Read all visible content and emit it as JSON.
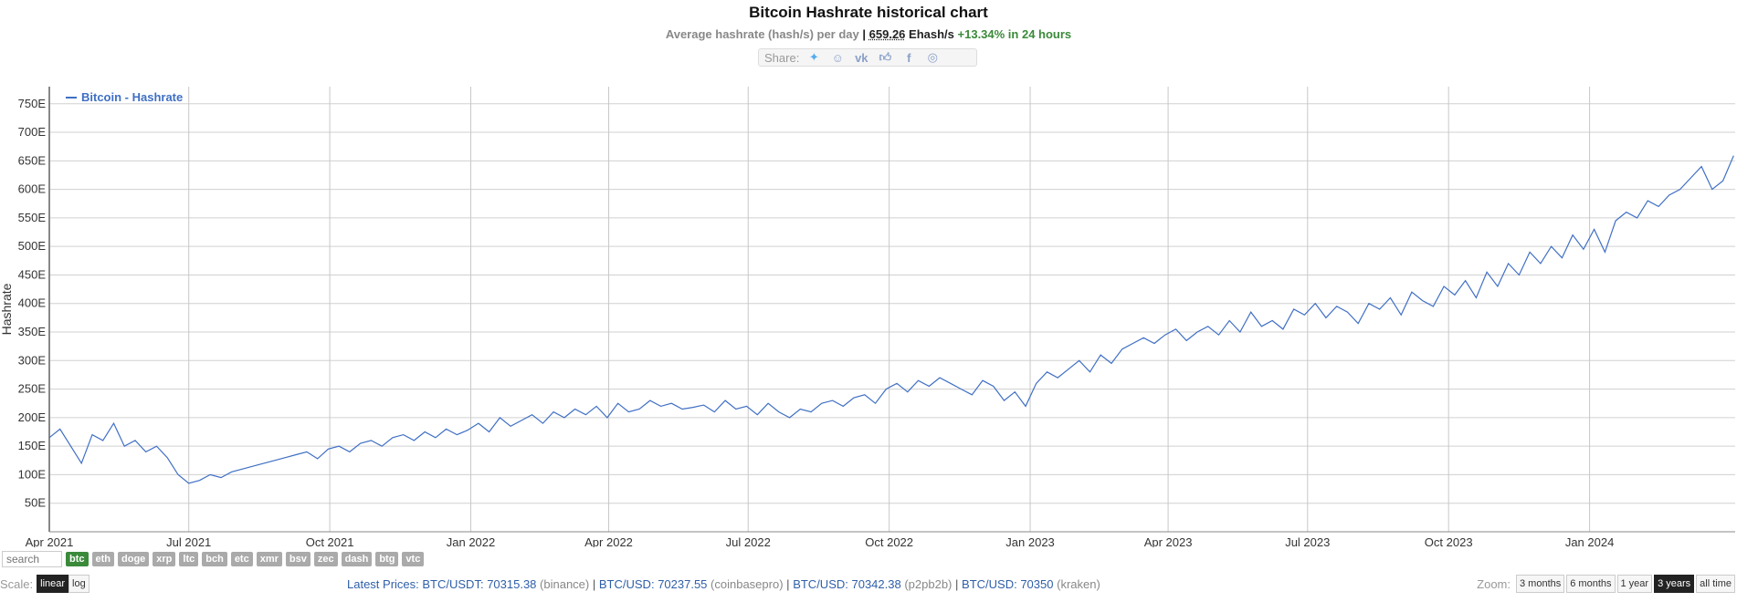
{
  "header": {
    "title": "Bitcoin Hashrate historical chart",
    "subtitle_prefix": "Average hashrate (hash/s) per day",
    "subtitle_sep": "|",
    "subtitle_value": "659.26",
    "subtitle_unit": "Ehash/s",
    "subtitle_change": "+13.34% in 24 hours",
    "share_label": "Share:",
    "share_icons": [
      "twitter-icon",
      "reddit-icon",
      "vk-icon",
      "like-icon",
      "facebook-icon",
      "weibo-icon"
    ]
  },
  "chart_data": {
    "type": "line",
    "title": "Bitcoin Hashrate historical chart",
    "ylabel": "Hashrate",
    "ylim": [
      0,
      780
    ],
    "yticks": [
      50,
      100,
      150,
      200,
      250,
      300,
      350,
      400,
      450,
      500,
      550,
      600,
      650,
      700,
      750
    ],
    "ytick_labels": [
      "50E",
      "100E",
      "150E",
      "200E",
      "250E",
      "300E",
      "350E",
      "400E",
      "450E",
      "500E",
      "550E",
      "600E",
      "650E",
      "700E",
      "750E"
    ],
    "xlim": [
      "2021-04-01",
      "2024-04-05"
    ],
    "xticks": [
      "2021-04-01",
      "2021-07-01",
      "2021-10-01",
      "2022-01-01",
      "2022-04-01",
      "2022-07-01",
      "2022-10-01",
      "2023-01-01",
      "2023-04-01",
      "2023-07-01",
      "2023-10-01",
      "2024-01-01"
    ],
    "xtick_labels": [
      "Apr 2021",
      "Jul 2021",
      "Oct 2021",
      "Jan 2022",
      "Apr 2022",
      "Jul 2022",
      "Oct 2022",
      "Jan 2023",
      "Apr 2023",
      "Jul 2023",
      "Oct 2023",
      "Jan 2024"
    ],
    "grid": true,
    "legend": "top-left",
    "color": "#3f6fc4",
    "series": [
      {
        "name": "Bitcoin - Hashrate",
        "x": [
          "2021-04-01",
          "2021-04-08",
          "2021-04-15",
          "2021-04-22",
          "2021-04-29",
          "2021-05-06",
          "2021-05-13",
          "2021-05-20",
          "2021-05-27",
          "2021-06-03",
          "2021-06-10",
          "2021-06-17",
          "2021-06-24",
          "2021-07-01",
          "2021-07-08",
          "2021-07-15",
          "2021-07-22",
          "2021-07-29",
          "2021-08-05",
          "2021-08-12",
          "2021-08-19",
          "2021-08-26",
          "2021-09-02",
          "2021-09-09",
          "2021-09-16",
          "2021-09-23",
          "2021-09-30",
          "2021-10-07",
          "2021-10-14",
          "2021-10-21",
          "2021-10-28",
          "2021-11-04",
          "2021-11-11",
          "2021-11-18",
          "2021-11-25",
          "2021-12-02",
          "2021-12-09",
          "2021-12-16",
          "2021-12-23",
          "2021-12-30",
          "2022-01-06",
          "2022-01-13",
          "2022-01-20",
          "2022-01-27",
          "2022-02-03",
          "2022-02-10",
          "2022-02-17",
          "2022-02-24",
          "2022-03-03",
          "2022-03-10",
          "2022-03-17",
          "2022-03-24",
          "2022-03-31",
          "2022-04-07",
          "2022-04-14",
          "2022-04-21",
          "2022-04-28",
          "2022-05-05",
          "2022-05-12",
          "2022-05-19",
          "2022-05-26",
          "2022-06-02",
          "2022-06-09",
          "2022-06-16",
          "2022-06-23",
          "2022-06-30",
          "2022-07-07",
          "2022-07-14",
          "2022-07-21",
          "2022-07-28",
          "2022-08-04",
          "2022-08-11",
          "2022-08-18",
          "2022-08-25",
          "2022-09-01",
          "2022-09-08",
          "2022-09-15",
          "2022-09-22",
          "2022-09-29",
          "2022-10-06",
          "2022-10-13",
          "2022-10-20",
          "2022-10-27",
          "2022-11-03",
          "2022-11-10",
          "2022-11-17",
          "2022-11-24",
          "2022-12-01",
          "2022-12-08",
          "2022-12-15",
          "2022-12-22",
          "2022-12-29",
          "2023-01-05",
          "2023-01-12",
          "2023-01-19",
          "2023-01-26",
          "2023-02-02",
          "2023-02-09",
          "2023-02-16",
          "2023-02-23",
          "2023-03-02",
          "2023-03-09",
          "2023-03-16",
          "2023-03-23",
          "2023-03-30",
          "2023-04-06",
          "2023-04-13",
          "2023-04-20",
          "2023-04-27",
          "2023-05-04",
          "2023-05-11",
          "2023-05-18",
          "2023-05-25",
          "2023-06-01",
          "2023-06-08",
          "2023-06-15",
          "2023-06-22",
          "2023-06-29",
          "2023-07-06",
          "2023-07-13",
          "2023-07-20",
          "2023-07-27",
          "2023-08-03",
          "2023-08-10",
          "2023-08-17",
          "2023-08-24",
          "2023-08-31",
          "2023-09-07",
          "2023-09-14",
          "2023-09-21",
          "2023-09-28",
          "2023-10-05",
          "2023-10-12",
          "2023-10-19",
          "2023-10-26",
          "2023-11-02",
          "2023-11-09",
          "2023-11-16",
          "2023-11-23",
          "2023-11-30",
          "2023-12-07",
          "2023-12-14",
          "2023-12-21",
          "2023-12-28",
          "2024-01-04",
          "2024-01-11",
          "2024-01-18",
          "2024-01-25",
          "2024-02-01",
          "2024-02-08",
          "2024-02-15",
          "2024-02-22",
          "2024-02-29",
          "2024-03-07",
          "2024-03-14",
          "2024-03-21",
          "2024-03-28",
          "2024-04-04"
        ],
        "values": [
          165,
          180,
          150,
          120,
          170,
          160,
          190,
          150,
          160,
          140,
          150,
          130,
          100,
          85,
          90,
          100,
          95,
          105,
          110,
          115,
          120,
          125,
          130,
          135,
          140,
          128,
          145,
          150,
          140,
          155,
          160,
          150,
          165,
          170,
          160,
          175,
          165,
          180,
          170,
          178,
          190,
          175,
          200,
          185,
          195,
          205,
          190,
          210,
          200,
          215,
          205,
          220,
          200,
          225,
          210,
          215,
          230,
          220,
          225,
          215,
          218,
          222,
          210,
          230,
          215,
          220,
          205,
          225,
          210,
          200,
          215,
          210,
          225,
          230,
          220,
          235,
          240,
          225,
          250,
          260,
          245,
          265,
          255,
          270,
          260,
          250,
          240,
          265,
          255,
          230,
          245,
          220,
          260,
          280,
          270,
          285,
          300,
          280,
          310,
          295,
          320,
          330,
          340,
          330,
          345,
          355,
          335,
          350,
          360,
          345,
          370,
          350,
          385,
          360,
          370,
          355,
          390,
          380,
          400,
          375,
          395,
          385,
          365,
          400,
          390,
          410,
          380,
          420,
          405,
          395,
          430,
          415,
          440,
          410,
          455,
          430,
          470,
          450,
          490,
          470,
          500,
          480,
          520,
          495,
          530,
          490,
          545,
          560,
          550,
          580,
          570,
          590,
          600,
          620,
          640,
          600,
          615,
          659
        ]
      }
    ]
  },
  "controls": {
    "search_placeholder": "search",
    "coins": [
      "btc",
      "eth",
      "doge",
      "xrp",
      "ltc",
      "bch",
      "etc",
      "xmr",
      "bsv",
      "zec",
      "dash",
      "btg",
      "vtc"
    ],
    "active_coin": "btc",
    "scale_label": "Scale:",
    "scale_options": [
      "linear",
      "log"
    ],
    "active_scale": "linear",
    "zoom_label": "Zoom:",
    "zoom_options": [
      "3 months",
      "6 months",
      "1 year",
      "3 years",
      "all time"
    ],
    "active_zoom": "3 years"
  },
  "prices": {
    "label": "Latest Prices:",
    "items": [
      {
        "pair": "BTC/USDT:",
        "value": "70315.38",
        "exchange": "(binance)"
      },
      {
        "pair": "BTC/USD:",
        "value": "70237.55",
        "exchange": "(coinbasepro)"
      },
      {
        "pair": "BTC/USD:",
        "value": "70342.38",
        "exchange": "(p2pb2b)"
      },
      {
        "pair": "BTC/USD:",
        "value": "70350",
        "exchange": "(kraken)"
      }
    ]
  }
}
